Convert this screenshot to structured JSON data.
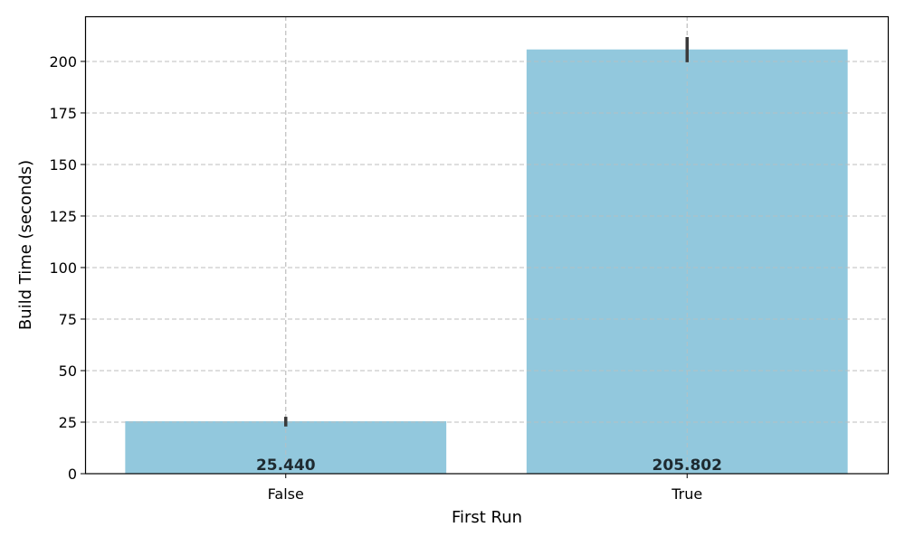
{
  "chart_data": {
    "type": "bar",
    "title": "",
    "xlabel": "First Run",
    "ylabel": "Build Time (seconds)",
    "categories": [
      "False",
      "True"
    ],
    "values": [
      25.44,
      205.802
    ],
    "data_labels": [
      "25.440",
      "205.802"
    ],
    "error_bars": [
      [
        22.9,
        27.6
      ],
      [
        199.6,
        211.8
      ]
    ],
    "ylim": [
      0,
      221.9
    ],
    "yticks": [
      0,
      25,
      50,
      75,
      100,
      125,
      150,
      175,
      200
    ],
    "grid": true,
    "bar_color": "#92c8dd",
    "error_color": "#3a3a3a",
    "label_color": "#1e2a30"
  }
}
